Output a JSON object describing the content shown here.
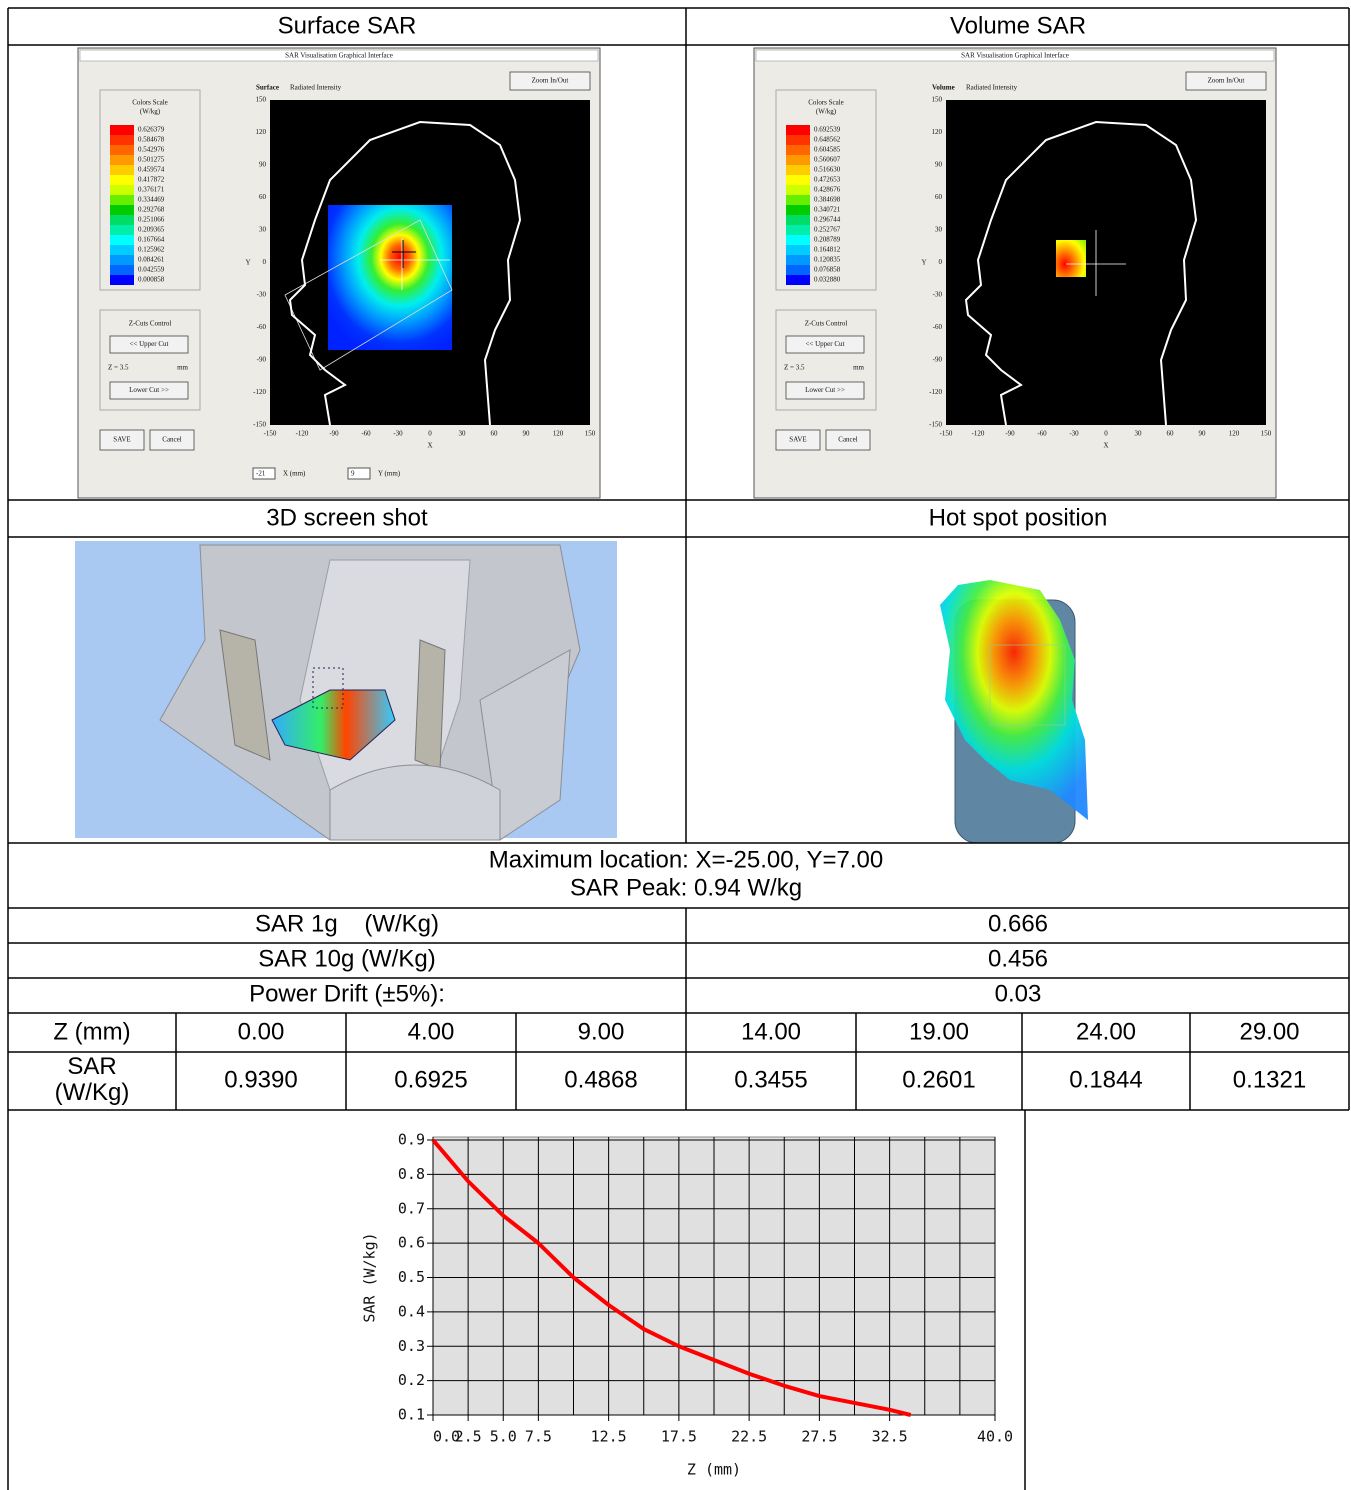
{
  "surface_sar": {
    "heading": "Surface SAR",
    "window_title": "SAR Visualisation Graphical Interface",
    "plot_title_bold": "Surface",
    "plot_title": "Radiated Intensity",
    "zoom_button": "Zoom In/Out",
    "color_scale_title": "Colors Scale",
    "color_scale_unit": "(W/kg)",
    "color_scale_values": [
      "0.626379",
      "0.584678",
      "0.542976",
      "0.501275",
      "0.459574",
      "0.417872",
      "0.376171",
      "0.334469",
      "0.292768",
      "0.251066",
      "0.209365",
      "0.167664",
      "0.125962",
      "0.084261",
      "0.042559",
      "0.000858"
    ],
    "zcuts_title": "Z-Cuts Control",
    "upper_cut": "<< Upper Cut",
    "z_value": "Z = 3.5",
    "z_unit": "mm",
    "lower_cut": "Lower Cut >>",
    "save": "SAVE",
    "cancel": "Cancel",
    "axis_ticks": [
      "-150",
      "-120",
      "-90",
      "-60",
      "-30",
      "0",
      "30",
      "60",
      "90",
      "120",
      "150"
    ],
    "x_axis": "X",
    "y_axis": "Y",
    "x_field": "-21",
    "x_field_label": "X (mm)",
    "y_field": "9",
    "y_field_label": "Y (mm)"
  },
  "volume_sar": {
    "heading": "Volume SAR",
    "window_title": "SAR Visualisation Graphical Interface",
    "plot_title_bold": "Volume",
    "plot_title": "Radiated Intensity",
    "zoom_button": "Zoom In/Out",
    "color_scale_title": "Colors Scale",
    "color_scale_unit": "(W/kg)",
    "color_scale_values": [
      "0.692539",
      "0.648562",
      "0.604585",
      "0.560607",
      "0.516630",
      "0.472653",
      "0.428676",
      "0.384698",
      "0.340721",
      "0.296744",
      "0.252767",
      "0.208789",
      "0.164812",
      "0.120835",
      "0.076858",
      "0.032880"
    ],
    "zcuts_title": "Z-Cuts Control",
    "upper_cut": "<< Upper Cut",
    "z_value": "Z = 3.5",
    "z_unit": "mm",
    "lower_cut": "Lower Cut >>",
    "save": "SAVE",
    "cancel": "Cancel",
    "axis_ticks": [
      "-150",
      "-120",
      "-90",
      "-60",
      "-30",
      "0",
      "30",
      "60",
      "90",
      "120",
      "150"
    ],
    "x_axis": "X",
    "y_axis": "Y"
  },
  "color_scale_colors": [
    "#ff0000",
    "#ff3300",
    "#ff6600",
    "#ff9900",
    "#ffcc00",
    "#ffff00",
    "#ccff00",
    "#66ee00",
    "#00cc00",
    "#00dd66",
    "#00eeaa",
    "#00ffff",
    "#00ccff",
    "#0099ff",
    "#0066ff",
    "#0000ff"
  ],
  "three_d": {
    "heading": "3D screen shot"
  },
  "hot_spot": {
    "heading": "Hot spot position"
  },
  "summary": {
    "max_location": "Maximum location: X=-25.00, Y=7.00",
    "sar_peak": "SAR Peak: 0.94 W/kg"
  },
  "results": {
    "rows": [
      [
        "SAR 1g    (W/Kg)",
        "0.666"
      ],
      [
        "SAR 10g (W/Kg)",
        "0.456"
      ],
      [
        "Power Drift (±5%):",
        "0.03"
      ]
    ]
  },
  "z_table": {
    "rows": [
      [
        "Z (mm)",
        "0.00",
        "4.00",
        "9.00",
        "14.00",
        "19.00",
        "24.00",
        "29.00"
      ],
      [
        "SAR (W/Kg)",
        "0.9390",
        "0.6925",
        "0.4868",
        "0.3455",
        "0.2601",
        "0.1844",
        "0.1321"
      ]
    ]
  },
  "chart_data": {
    "type": "line",
    "xlabel": "Z (mm)",
    "ylabel": "SAR (W/kg)",
    "x": [
      0,
      2.5,
      5,
      7.5,
      10,
      12.5,
      15,
      17.5,
      20,
      22.5,
      25,
      27.5,
      30,
      32.5,
      34
    ],
    "values": [
      0.9,
      0.78,
      0.68,
      0.6,
      0.5,
      0.42,
      0.35,
      0.3,
      0.26,
      0.22,
      0.185,
      0.155,
      0.135,
      0.115,
      0.1
    ],
    "color": "#ff0000",
    "xlim": [
      0,
      40
    ],
    "ylim": [
      0.1,
      0.9
    ],
    "xticks": [
      {
        "value": 0,
        "label": "0.0"
      },
      2.5,
      {
        "value": 5,
        "label": "5.0"
      },
      7.5,
      12.5,
      17.5,
      22.5,
      27.5,
      32.5,
      {
        "value": 40,
        "label": "40.0"
      }
    ],
    "yticks": [
      0.1,
      0.2,
      0.3,
      0.4,
      0.5,
      0.6,
      0.7,
      0.8,
      0.9
    ],
    "xgrid": [
      0,
      2.5,
      5,
      7.5,
      10,
      12.5,
      15,
      17.5,
      20,
      22.5,
      25,
      27.5,
      30,
      32.5,
      35,
      37.5,
      40
    ],
    "grid": true,
    "plot_background": "#e0e0e0"
  }
}
